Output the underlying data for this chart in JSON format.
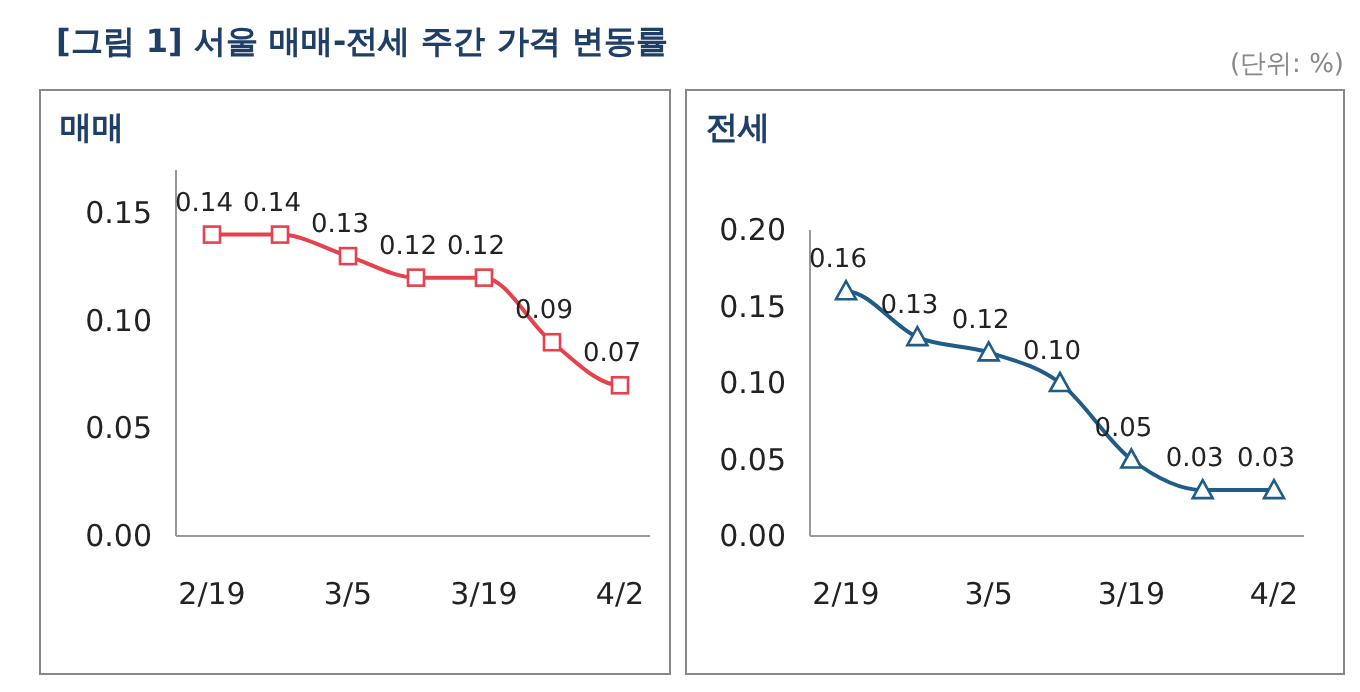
{
  "chart_data": [
    {
      "type": "line",
      "title": "매매",
      "annotations": [
        "[그림 1] 서울 매매-전세 주간 가격 변동률"
      ],
      "categories": [
        "2/19",
        null,
        "3/5",
        null,
        "3/19",
        null,
        "4/2"
      ],
      "series": [
        {
          "color": "#e5424d",
          "values": [
            0.14,
            0.14,
            0.13,
            0.12,
            0.12,
            0.09,
            0.07
          ],
          "value_labels": [
            "0.14",
            "0.14",
            "0.13",
            "0.12",
            "0.12",
            "0.09",
            "0.07"
          ]
        }
      ],
      "ylim": [
        0,
        0.17
      ],
      "yticks": [
        {
          "value": 0,
          "label": "0.00"
        },
        {
          "value": 0.05,
          "label": "0.05"
        },
        {
          "value": 0.1,
          "label": "0.10"
        },
        {
          "value": 0.15,
          "label": "0.15"
        }
      ],
      "marker": "square"
    },
    {
      "type": "line",
      "title": "전세",
      "annotations": [
        "(단위: %)"
      ],
      "categories": [
        "2/19",
        null,
        "3/5",
        null,
        "3/19",
        null,
        "4/2"
      ],
      "series": [
        {
          "color": "#1f5c87",
          "values": [
            0.16,
            0.13,
            0.12,
            0.1,
            0.05,
            0.03,
            0.03
          ],
          "value_labels": [
            "0.16",
            "0.13",
            "0.12",
            "0.10",
            "0.05",
            "0.03",
            "0.03"
          ]
        }
      ],
      "ylim": [
        0,
        0.2
      ],
      "yticks": [
        {
          "value": 0,
          "label": "0.00"
        },
        {
          "value": 0.05,
          "label": "0.05"
        },
        {
          "value": 0.1,
          "label": "0.10"
        },
        {
          "value": 0.15,
          "label": "0.15"
        },
        {
          "value": 0.2,
          "label": "0.20"
        }
      ],
      "marker": "triangle"
    }
  ]
}
